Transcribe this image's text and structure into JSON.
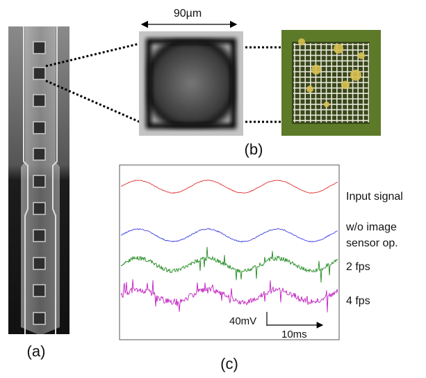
{
  "scale_label": "90µm",
  "panels": {
    "a": "(a)",
    "b": "(b)",
    "c": "(c)"
  },
  "traces": {
    "input": "Input signal",
    "no_sensor_line1": "w/o image",
    "no_sensor_line2": "sensor op.",
    "fps2": "2 fps",
    "fps4": "4 fps"
  },
  "scale_bar": {
    "voltage": "40mV",
    "time": "10ms"
  }
}
